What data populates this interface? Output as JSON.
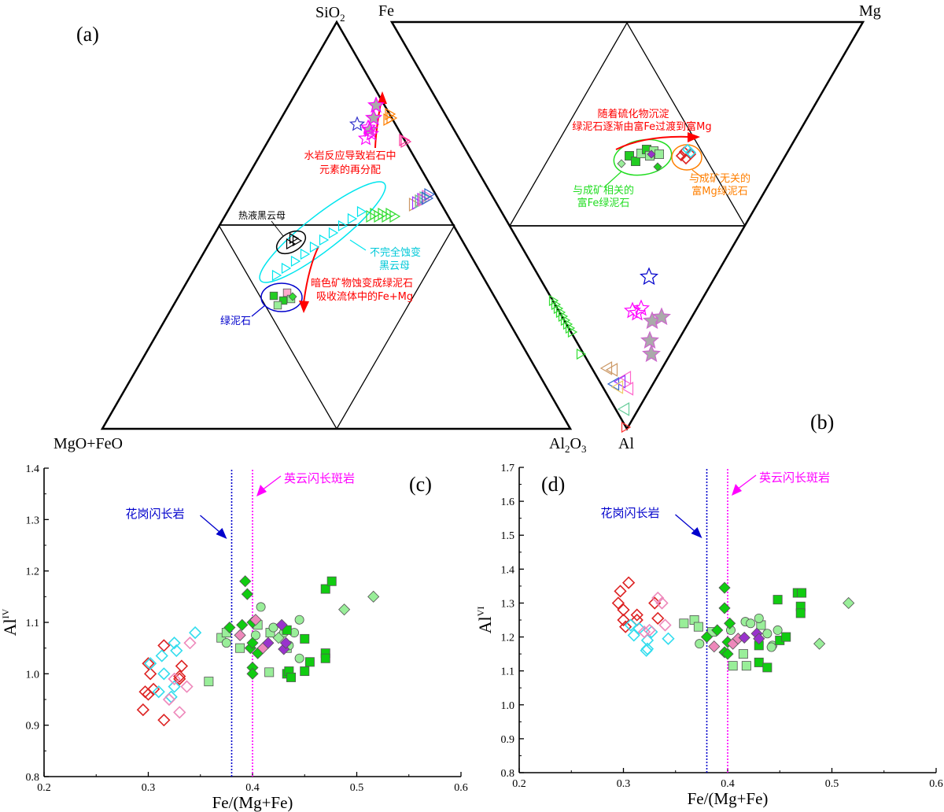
{
  "figure": {
    "panels": [
      "(a)",
      "(b)",
      "(c)",
      "(d)"
    ]
  },
  "chart_data": [
    {
      "type": "ternary",
      "panel": "(a)",
      "vertices": {
        "top": "SiO2",
        "left": "MgO+FeO",
        "right": "Al2O3"
      },
      "annotations": [
        {
          "text_lines": [
            "水岩反应导致岩石中",
            "元素的再分配"
          ],
          "color": "#ff0000"
        },
        {
          "text_lines": [
            "热液黑云母"
          ],
          "color": "#000000"
        },
        {
          "text_lines": [
            "不完全蚀变",
            "黑云母"
          ],
          "color": "#00e5ee"
        },
        {
          "text_lines": [
            "暗色矿物蚀变成绿泥石",
            "吸收流体中的Fe+Mg"
          ],
          "color": "#ff0000"
        },
        {
          "text_lines": [
            "绿泥石"
          ],
          "color": "#0000cc"
        }
      ],
      "groups": [
        {
          "name": "stars-host-rock",
          "marker": "star",
          "color": "#ff00ff",
          "sio2_range": [
            0.72,
            0.79
          ]
        },
        {
          "name": "triangles-orange",
          "marker": "triangle",
          "color": "#ff7f00",
          "sio2_range": [
            0.74,
            0.76
          ]
        },
        {
          "name": "triangles-pink",
          "marker": "triangle",
          "color": "#ff3399",
          "sio2_range": [
            0.65,
            0.66
          ]
        },
        {
          "name": "triangles-mixed",
          "marker": "triangle",
          "color": "#9933ff",
          "sio2_range": [
            0.52,
            0.55
          ]
        },
        {
          "name": "biotite-incomplete",
          "marker": "triangle",
          "color": "#00e5ee",
          "sio2_range": [
            0.3,
            0.5
          ]
        },
        {
          "name": "hydrothermal-biotite",
          "marker": "triangle",
          "color": "#000000",
          "sio2_range": [
            0.44,
            0.46
          ]
        },
        {
          "name": "chlorite",
          "marker": "square",
          "color": "#00cc00",
          "sio2_range": [
            0.3,
            0.34
          ]
        }
      ]
    },
    {
      "type": "ternary",
      "panel": "(b)",
      "vertices": {
        "top_left": "Fe",
        "top_right": "Mg",
        "bottom": "Al"
      },
      "annotations": [
        {
          "text_lines": [
            "随着硫化物沉淀",
            "绿泥石逐渐由富Fe过渡到富Mg"
          ],
          "color": "#ff0000"
        },
        {
          "text_lines": [
            "与成矿相关的",
            "富Fe绿泥石"
          ],
          "color": "#00cc00"
        },
        {
          "text_lines": [
            "与成矿无关的",
            "富Mg绿泥石"
          ],
          "color": "#ff7f00"
        }
      ]
    },
    {
      "type": "scatter",
      "panel": "(c)",
      "title": "",
      "xlabel": "Fe/(Mg+Fe)",
      "ylabel": "AlIV",
      "ylabel_main": "Al",
      "ylabel_sup": "IV",
      "xlim": [
        0.2,
        0.6
      ],
      "ylim": [
        0.8,
        1.4
      ],
      "xticks": [
        "0.2",
        "0.3",
        "0.4",
        "0.5",
        "0.6"
      ],
      "yticks": [
        "0.8",
        "0.9",
        "1.0",
        "1.1",
        "1.2",
        "1.3",
        "1.4"
      ],
      "vlines": [
        {
          "x": 0.38,
          "color": "#0000cc",
          "label": "花岗闪长岩"
        },
        {
          "x": 0.4,
          "color": "#ff00ff",
          "label": "英云闪长斑岩"
        }
      ],
      "series": [
        {
          "name": "red-open-diamond",
          "marker": "diamond-open",
          "color": "#dd2222",
          "points": [
            [
              0.295,
              0.93
            ],
            [
              0.297,
              0.965
            ],
            [
              0.3,
              0.96
            ],
            [
              0.3,
              1.02
            ],
            [
              0.302,
              1.0
            ],
            [
              0.305,
              0.97
            ],
            [
              0.315,
              1.055
            ],
            [
              0.315,
              0.91
            ],
            [
              0.33,
              0.995
            ],
            [
              0.332,
              1.015
            ],
            [
              0.33,
              0.99
            ]
          ]
        },
        {
          "name": "cyan-open-diamond",
          "marker": "diamond-open",
          "color": "#33ddee",
          "points": [
            [
              0.302,
              1.02
            ],
            [
              0.31,
              0.965
            ],
            [
              0.313,
              1.035
            ],
            [
              0.315,
              1.0
            ],
            [
              0.322,
              0.955
            ],
            [
              0.325,
              0.975
            ],
            [
              0.325,
              1.06
            ],
            [
              0.327,
              1.045
            ],
            [
              0.345,
              1.08
            ]
          ]
        },
        {
          "name": "pink-open-diamond",
          "marker": "diamond-open",
          "color": "#ee88bb",
          "points": [
            [
              0.32,
              0.95
            ],
            [
              0.325,
              0.99
            ],
            [
              0.33,
              0.925
            ],
            [
              0.337,
              0.975
            ],
            [
              0.34,
              1.06
            ]
          ]
        },
        {
          "name": "lightgreen-square",
          "marker": "square",
          "color": "#99ee99",
          "points": [
            [
              0.358,
              0.985
            ],
            [
              0.37,
              1.07
            ],
            [
              0.375,
              1.08
            ],
            [
              0.388,
              1.05
            ],
            [
              0.405,
              1.095
            ],
            [
              0.416,
              1.003
            ],
            [
              0.417,
              1.08
            ],
            [
              0.433,
              1.05
            ]
          ]
        },
        {
          "name": "lightgreen-circle",
          "marker": "circle",
          "color": "#99ee99",
          "points": [
            [
              0.375,
              1.06
            ],
            [
              0.403,
              1.075
            ],
            [
              0.408,
              1.13
            ],
            [
              0.42,
              1.09
            ],
            [
              0.43,
              1.08
            ],
            [
              0.435,
              1.055
            ],
            [
              0.44,
              1.08
            ],
            [
              0.445,
              1.105
            ],
            [
              0.445,
              1.03
            ]
          ]
        },
        {
          "name": "green-diamond",
          "marker": "diamond",
          "color": "#11cc11",
          "points": [
            [
              0.378,
              1.09
            ],
            [
              0.39,
              1.095
            ],
            [
              0.393,
              1.18
            ],
            [
              0.395,
              1.155
            ],
            [
              0.398,
              1.05
            ],
            [
              0.4,
              1.1
            ],
            [
              0.4,
              1.06
            ],
            [
              0.4,
              1.012
            ],
            [
              0.4,
              1.0
            ],
            [
              0.405,
              1.04
            ]
          ]
        },
        {
          "name": "green-square",
          "marker": "square",
          "color": "#11cc11",
          "points": [
            [
              0.433,
              1.085
            ],
            [
              0.433,
              1.0
            ],
            [
              0.435,
              1.005
            ],
            [
              0.437,
              0.993
            ],
            [
              0.45,
              1.005
            ],
            [
              0.45,
              1.068
            ],
            [
              0.455,
              1.023
            ],
            [
              0.47,
              1.04
            ],
            [
              0.47,
              1.03
            ],
            [
              0.47,
              1.165
            ],
            [
              0.476,
              1.18
            ]
          ]
        },
        {
          "name": "lightgreen-diamond",
          "marker": "diamond",
          "color": "#99ee99",
          "points": [
            [
              0.425,
              1.07
            ],
            [
              0.488,
              1.125
            ],
            [
              0.516,
              1.15
            ]
          ]
        },
        {
          "name": "pink-diamond",
          "marker": "diamond",
          "color": "#ee88bb",
          "points": [
            [
              0.388,
              1.075
            ],
            [
              0.403,
              1.105
            ],
            [
              0.41,
              1.05
            ]
          ]
        },
        {
          "name": "purple-diamond",
          "marker": "diamond",
          "color": "#9933cc",
          "points": [
            [
              0.415,
              1.06
            ],
            [
              0.428,
              1.095
            ],
            [
              0.43,
              1.048
            ],
            [
              0.432,
              1.06
            ]
          ]
        }
      ]
    },
    {
      "type": "scatter",
      "panel": "(d)",
      "title": "",
      "xlabel": "Fe/(Mg+Fe)",
      "ylabel": "AlVI",
      "ylabel_main": "Al",
      "ylabel_sup": "VI",
      "xlim": [
        0.2,
        0.6
      ],
      "ylim": [
        0.8,
        1.7
      ],
      "xticks": [
        "0.2",
        "0.3",
        "0.4",
        "0.5",
        "0.6"
      ],
      "yticks": [
        "0.8",
        "0.9",
        "1.0",
        "1.1",
        "1.2",
        "1.3",
        "1.4",
        "1.5",
        "1.6",
        "1.7"
      ],
      "vlines": [
        {
          "x": 0.38,
          "color": "#0000cc",
          "label": "花岗闪长岩"
        },
        {
          "x": 0.4,
          "color": "#ff00ff",
          "label": "英云闪长斑岩"
        }
      ],
      "series": [
        {
          "name": "red-open-diamond",
          "marker": "diamond-open",
          "color": "#dd2222",
          "points": [
            [
              0.295,
              1.3
            ],
            [
              0.297,
              1.335
            ],
            [
              0.3,
              1.28
            ],
            [
              0.3,
              1.25
            ],
            [
              0.302,
              1.23
            ],
            [
              0.305,
              1.36
            ],
            [
              0.313,
              1.265
            ],
            [
              0.313,
              1.25
            ],
            [
              0.33,
              1.3
            ],
            [
              0.333,
              1.255
            ]
          ]
        },
        {
          "name": "cyan-open-diamond",
          "marker": "diamond-open",
          "color": "#33ddee",
          "points": [
            [
              0.307,
              1.235
            ],
            [
              0.31,
              1.205
            ],
            [
              0.315,
              1.225
            ],
            [
              0.322,
              1.16
            ],
            [
              0.323,
              1.19
            ],
            [
              0.323,
              1.165
            ],
            [
              0.327,
              1.215
            ],
            [
              0.343,
              1.195
            ]
          ]
        },
        {
          "name": "pink-open-diamond",
          "marker": "diamond-open",
          "color": "#ee88bb",
          "points": [
            [
              0.32,
              1.215
            ],
            [
              0.325,
              1.22
            ],
            [
              0.333,
              1.315
            ],
            [
              0.337,
              1.3
            ],
            [
              0.34,
              1.235
            ]
          ]
        },
        {
          "name": "lightgreen-square",
          "marker": "square",
          "color": "#99ee99",
          "points": [
            [
              0.358,
              1.24
            ],
            [
              0.368,
              1.25
            ],
            [
              0.372,
              1.23
            ],
            [
              0.385,
              1.215
            ],
            [
              0.405,
              1.115
            ],
            [
              0.415,
              1.15
            ],
            [
              0.418,
              1.115
            ],
            [
              0.432,
              1.235
            ]
          ]
        },
        {
          "name": "lightgreen-circle",
          "marker": "circle",
          "color": "#99ee99",
          "points": [
            [
              0.373,
              1.18
            ],
            [
              0.403,
              1.22
            ],
            [
              0.417,
              1.245
            ],
            [
              0.422,
              1.24
            ],
            [
              0.43,
              1.255
            ],
            [
              0.438,
              1.21
            ],
            [
              0.443,
              1.175
            ],
            [
              0.448,
              1.22
            ],
            [
              0.442,
              1.17
            ]
          ]
        },
        {
          "name": "green-diamond",
          "marker": "diamond",
          "color": "#11cc11",
          "points": [
            [
              0.38,
              1.2
            ],
            [
              0.39,
              1.22
            ],
            [
              0.397,
              1.345
            ],
            [
              0.397,
              1.285
            ],
            [
              0.4,
              1.185
            ],
            [
              0.402,
              1.24
            ],
            [
              0.397,
              1.155
            ],
            [
              0.4,
              1.15
            ]
          ]
        },
        {
          "name": "green-square",
          "marker": "square",
          "color": "#11cc11",
          "points": [
            [
              0.43,
              1.175
            ],
            [
              0.43,
              1.125
            ],
            [
              0.438,
              1.11
            ],
            [
              0.448,
              1.31
            ],
            [
              0.45,
              1.19
            ],
            [
              0.456,
              1.2
            ],
            [
              0.467,
              1.33
            ],
            [
              0.471,
              1.33
            ],
            [
              0.47,
              1.29
            ],
            [
              0.47,
              1.27
            ]
          ]
        },
        {
          "name": "lightgreen-diamond",
          "marker": "diamond",
          "color": "#99ee99",
          "points": [
            [
              0.488,
              1.18
            ],
            [
              0.516,
              1.3
            ]
          ]
        },
        {
          "name": "pink-diamond",
          "marker": "diamond",
          "color": "#ee88bb",
          "points": [
            [
              0.387,
              1.172
            ],
            [
              0.405,
              1.18
            ],
            [
              0.41,
              1.195
            ]
          ]
        },
        {
          "name": "purple-diamond",
          "marker": "diamond",
          "color": "#9933cc",
          "points": [
            [
              0.416,
              1.198
            ],
            [
              0.428,
              1.21
            ],
            [
              0.43,
              1.195
            ]
          ]
        }
      ]
    }
  ]
}
